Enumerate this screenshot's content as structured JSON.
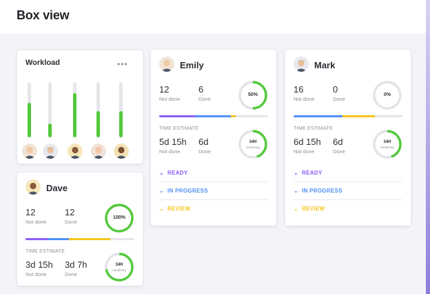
{
  "page": {
    "title": "Box view"
  },
  "colors": {
    "green": "#53c93b",
    "purple": "#8b5cf6",
    "blue": "#4f8ff7",
    "yellow": "#f5c518",
    "grey": "#e3e3e8"
  },
  "workload": {
    "title": "Workload",
    "menu_icon": "more-dots-icon",
    "bars": [
      {
        "person": "Emily",
        "fill": 0.62
      },
      {
        "person": "Mark",
        "fill": 0.25
      },
      {
        "person": "Dave",
        "fill": 0.8
      },
      {
        "person": "Woman 2",
        "fill": 0.48
      },
      {
        "person": "Man 3",
        "fill": 0.48
      }
    ]
  },
  "people": [
    {
      "name": "Emily",
      "not_done": "12",
      "not_done_label": "Not done",
      "done": "6",
      "done_label": "Done",
      "percent": "50%",
      "percent_value": 0.5,
      "progress": {
        "purple": 0.33,
        "blue": 0.33,
        "yellow": 0.04
      },
      "time_label": "TIME ESTIMATE",
      "est1": "5d 15h",
      "est1_label": "Not done",
      "est2": "6d",
      "est2_label": "Done",
      "hours": "34H",
      "hours_label": "remaining",
      "hours_value": 0.45,
      "statuses": [
        {
          "label": "READY",
          "color": "#8b5cf6"
        },
        {
          "label": "IN PROGRESS",
          "color": "#4f8ff7"
        },
        {
          "label": "REVIEW",
          "color": "#f5c518"
        }
      ]
    },
    {
      "name": "Mark",
      "not_done": "16",
      "not_done_label": "Not done",
      "done": "0",
      "done_label": "Done",
      "percent": "0%",
      "percent_value": 0,
      "progress": {
        "purple": 0.0,
        "blue": 0.45,
        "yellow": 0.3
      },
      "time_label": "TIME ESTIMATE",
      "est1": "6d 15h",
      "est1_label": "Not done",
      "est2": "6d",
      "est2_label": "Done",
      "hours": "34H",
      "hours_label": "remaining",
      "hours_value": 0.45,
      "statuses": [
        {
          "label": "READY",
          "color": "#8b5cf6"
        },
        {
          "label": "IN PROGRESS",
          "color": "#4f8ff7"
        },
        {
          "label": "REVIEW",
          "color": "#f5c518"
        }
      ]
    },
    {
      "name": "Dave",
      "not_done": "12",
      "not_done_label": "Not done",
      "done": "12",
      "done_label": "Done",
      "percent": "100%",
      "percent_value": 1,
      "progress": {
        "purple": 0.2,
        "blue": 0.2,
        "yellow": 0.38
      },
      "time_label": "TIME ESTIMATE",
      "est1": "3d 15h",
      "est1_label": "Not done",
      "est2": "3d 7h",
      "est2_label": "Done",
      "hours": "34H",
      "hours_label": "remaining",
      "hours_value": 0.72
    }
  ]
}
